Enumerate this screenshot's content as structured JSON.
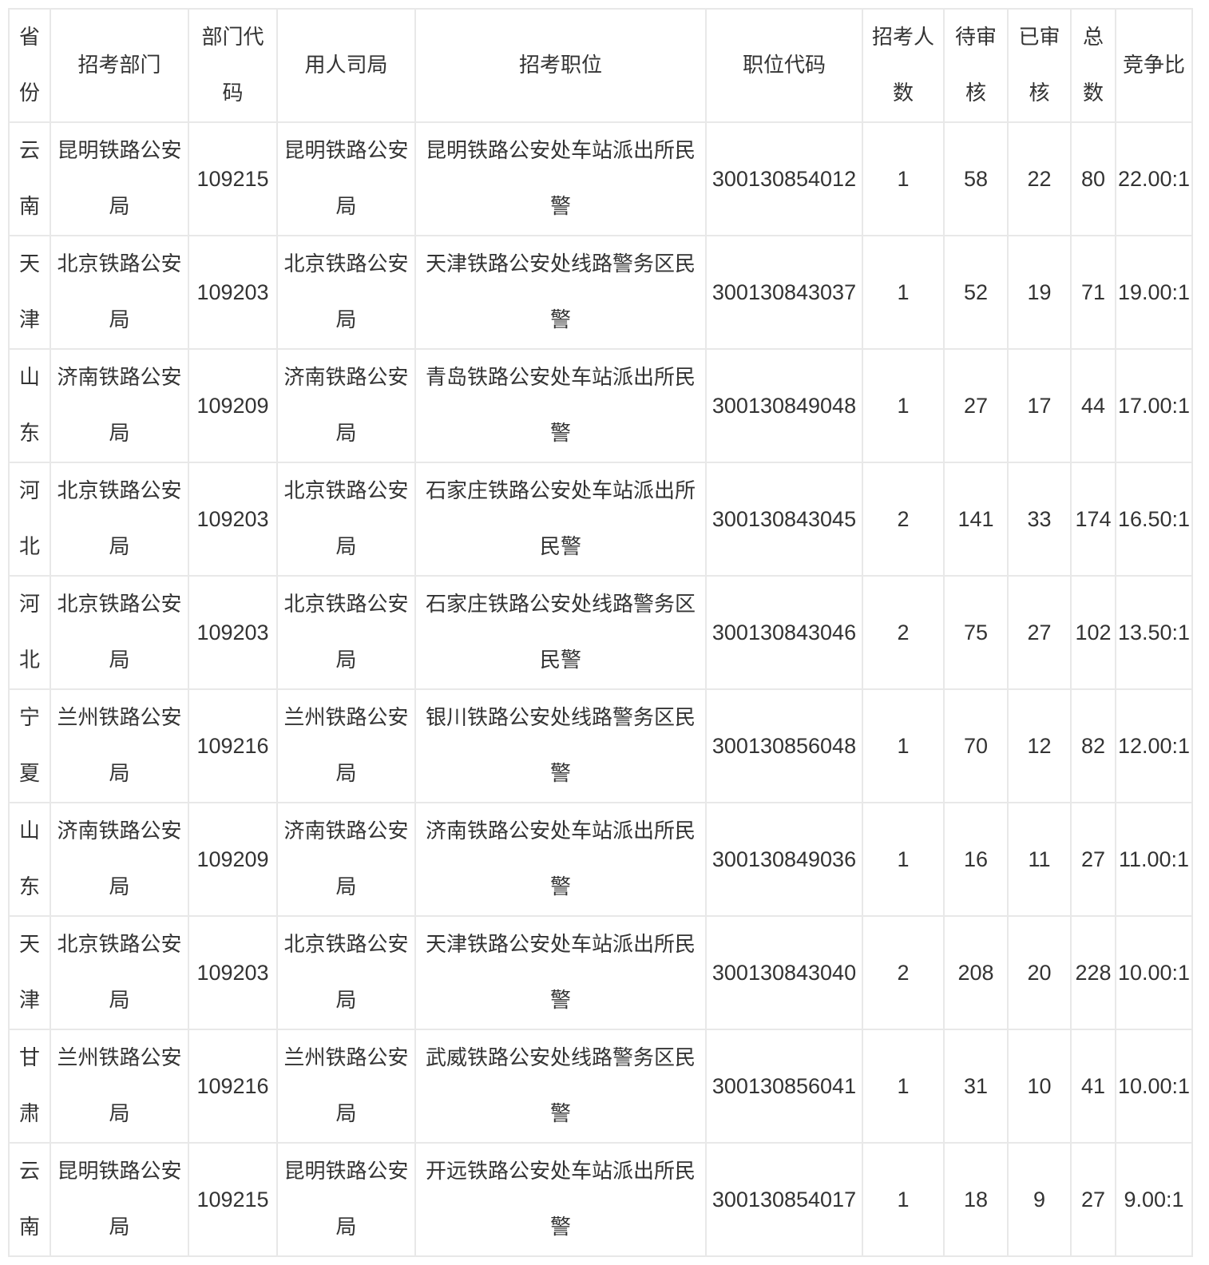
{
  "table": {
    "headers": [
      "省份",
      "招考部门",
      "部门代码",
      "用人司局",
      "招考职位",
      "职位代码",
      "招考人数",
      "待审核",
      "已审核",
      "总数",
      "竞争比"
    ],
    "rows": [
      [
        "云南",
        "昆明铁路公安局",
        "109215",
        "昆明铁路公安局",
        "昆明铁路公安处车站派出所民警",
        "300130854012",
        "1",
        "58",
        "22",
        "80",
        "22.00:1"
      ],
      [
        "天津",
        "北京铁路公安局",
        "109203",
        "北京铁路公安局",
        "天津铁路公安处线路警务区民警",
        "300130843037",
        "1",
        "52",
        "19",
        "71",
        "19.00:1"
      ],
      [
        "山东",
        "济南铁路公安局",
        "109209",
        "济南铁路公安局",
        "青岛铁路公安处车站派出所民警",
        "300130849048",
        "1",
        "27",
        "17",
        "44",
        "17.00:1"
      ],
      [
        "河北",
        "北京铁路公安局",
        "109203",
        "北京铁路公安局",
        "石家庄铁路公安处车站派出所民警",
        "300130843045",
        "2",
        "141",
        "33",
        "174",
        "16.50:1"
      ],
      [
        "河北",
        "北京铁路公安局",
        "109203",
        "北京铁路公安局",
        "石家庄铁路公安处线路警务区民警",
        "300130843046",
        "2",
        "75",
        "27",
        "102",
        "13.50:1"
      ],
      [
        "宁夏",
        "兰州铁路公安局",
        "109216",
        "兰州铁路公安局",
        "银川铁路公安处线路警务区民警",
        "300130856048",
        "1",
        "70",
        "12",
        "82",
        "12.00:1"
      ],
      [
        "山东",
        "济南铁路公安局",
        "109209",
        "济南铁路公安局",
        "济南铁路公安处车站派出所民警",
        "300130849036",
        "1",
        "16",
        "11",
        "27",
        "11.00:1"
      ],
      [
        "天津",
        "北京铁路公安局",
        "109203",
        "北京铁路公安局",
        "天津铁路公安处车站派出所民警",
        "300130843040",
        "2",
        "208",
        "20",
        "228",
        "10.00:1"
      ],
      [
        "甘肃",
        "兰州铁路公安局",
        "109216",
        "兰州铁路公安局",
        "武威铁路公安处线路警务区民警",
        "300130856041",
        "1",
        "31",
        "10",
        "41",
        "10.00:1"
      ],
      [
        "云南",
        "昆明铁路公安局",
        "109215",
        "昆明铁路公安局",
        "开远铁路公安处车站派出所民警",
        "300130854017",
        "1",
        "18",
        "9",
        "27",
        "9.00:1"
      ]
    ]
  }
}
